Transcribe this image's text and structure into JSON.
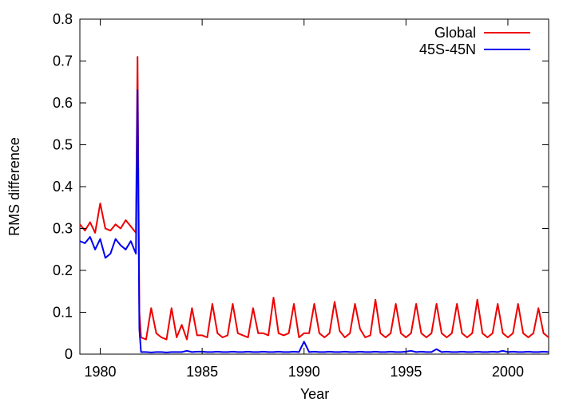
{
  "chart_data": {
    "type": "line",
    "title": "",
    "xlabel": "Year",
    "ylabel": "RMS difference",
    "xlim": [
      1979,
      2002
    ],
    "ylim": [
      0,
      0.8
    ],
    "x_ticks": [
      1980,
      1985,
      1990,
      1995,
      2000
    ],
    "y_ticks": [
      0,
      0.1,
      0.2,
      0.3,
      0.4,
      0.5,
      0.6,
      0.7,
      0.8
    ],
    "y_tick_labels": [
      "0",
      "0.1",
      "0.2",
      "0.3",
      "0.4",
      "0.5",
      "0.6",
      "0.7",
      "0.8"
    ],
    "grid": false,
    "legend_position": "top-right",
    "series": [
      {
        "name": "Global",
        "color": "#ee0000",
        "x": [
          1979.0,
          1979.25,
          1979.5,
          1979.75,
          1980.0,
          1980.25,
          1980.5,
          1980.75,
          1981.0,
          1981.25,
          1981.5,
          1981.75,
          1981.83,
          1981.92,
          1982.0,
          1982.25,
          1982.5,
          1982.75,
          1983.0,
          1983.25,
          1983.5,
          1983.75,
          1984.0,
          1984.25,
          1984.5,
          1984.75,
          1985.0,
          1985.25,
          1985.5,
          1985.75,
          1986.0,
          1986.25,
          1986.5,
          1986.75,
          1987.0,
          1987.25,
          1987.5,
          1987.75,
          1988.0,
          1988.25,
          1988.5,
          1988.75,
          1989.0,
          1989.25,
          1989.5,
          1989.75,
          1990.0,
          1990.25,
          1990.5,
          1990.75,
          1991.0,
          1991.25,
          1991.5,
          1991.75,
          1992.0,
          1992.25,
          1992.5,
          1992.75,
          1993.0,
          1993.25,
          1993.5,
          1993.75,
          1994.0,
          1994.25,
          1994.5,
          1994.75,
          1995.0,
          1995.25,
          1995.5,
          1995.75,
          1996.0,
          1996.25,
          1996.5,
          1996.75,
          1997.0,
          1997.25,
          1997.5,
          1997.75,
          1998.0,
          1998.25,
          1998.5,
          1998.75,
          1999.0,
          1999.25,
          1999.5,
          1999.75,
          2000.0,
          2000.25,
          2000.5,
          2000.75,
          2001.0,
          2001.25,
          2001.5,
          2001.75,
          2002.0
        ],
        "values": [
          0.31,
          0.295,
          0.315,
          0.29,
          0.36,
          0.3,
          0.295,
          0.31,
          0.3,
          0.32,
          0.305,
          0.29,
          0.71,
          0.1,
          0.04,
          0.035,
          0.11,
          0.05,
          0.04,
          0.035,
          0.11,
          0.04,
          0.07,
          0.035,
          0.11,
          0.045,
          0.045,
          0.04,
          0.12,
          0.05,
          0.04,
          0.045,
          0.12,
          0.05,
          0.045,
          0.04,
          0.11,
          0.05,
          0.05,
          0.045,
          0.135,
          0.05,
          0.045,
          0.05,
          0.12,
          0.04,
          0.05,
          0.05,
          0.12,
          0.05,
          0.04,
          0.05,
          0.125,
          0.055,
          0.04,
          0.05,
          0.12,
          0.06,
          0.04,
          0.045,
          0.13,
          0.05,
          0.04,
          0.05,
          0.12,
          0.05,
          0.04,
          0.05,
          0.12,
          0.05,
          0.04,
          0.05,
          0.12,
          0.05,
          0.04,
          0.05,
          0.12,
          0.05,
          0.04,
          0.05,
          0.13,
          0.05,
          0.04,
          0.05,
          0.12,
          0.05,
          0.04,
          0.05,
          0.12,
          0.05,
          0.04,
          0.05,
          0.11,
          0.05,
          0.04
        ]
      },
      {
        "name": "45S-45N",
        "color": "#0000ee",
        "x": [
          1979.0,
          1979.25,
          1979.5,
          1979.75,
          1980.0,
          1980.25,
          1980.5,
          1980.75,
          1981.0,
          1981.25,
          1981.5,
          1981.75,
          1981.83,
          1981.92,
          1982.0,
          1982.25,
          1982.5,
          1982.75,
          1983.0,
          1983.25,
          1983.5,
          1983.75,
          1984.0,
          1984.25,
          1984.5,
          1984.75,
          1985.0,
          1985.25,
          1985.5,
          1985.75,
          1986.0,
          1986.25,
          1986.5,
          1986.75,
          1987.0,
          1987.25,
          1987.5,
          1987.75,
          1988.0,
          1988.25,
          1988.5,
          1988.75,
          1989.0,
          1989.25,
          1989.5,
          1989.75,
          1990.0,
          1990.25,
          1990.5,
          1990.75,
          1991.0,
          1991.25,
          1991.5,
          1991.75,
          1992.0,
          1992.25,
          1992.5,
          1992.75,
          1993.0,
          1993.25,
          1993.5,
          1993.75,
          1994.0,
          1994.25,
          1994.5,
          1994.75,
          1995.0,
          1995.25,
          1995.5,
          1995.75,
          1996.0,
          1996.25,
          1996.5,
          1996.75,
          1997.0,
          1997.25,
          1997.5,
          1997.75,
          1998.0,
          1998.25,
          1998.5,
          1998.75,
          1999.0,
          1999.25,
          1999.5,
          1999.75,
          2000.0,
          2000.25,
          2000.5,
          2000.75,
          2001.0,
          2001.25,
          2001.5,
          2001.75,
          2002.0
        ],
        "values": [
          0.27,
          0.265,
          0.28,
          0.25,
          0.275,
          0.23,
          0.24,
          0.275,
          0.26,
          0.25,
          0.27,
          0.24,
          0.63,
          0.06,
          0.005,
          0.005,
          0.004,
          0.005,
          0.005,
          0.004,
          0.005,
          0.005,
          0.005,
          0.008,
          0.005,
          0.006,
          0.006,
          0.005,
          0.005,
          0.006,
          0.005,
          0.005,
          0.006,
          0.005,
          0.005,
          0.006,
          0.005,
          0.005,
          0.006,
          0.005,
          0.005,
          0.006,
          0.005,
          0.005,
          0.006,
          0.005,
          0.03,
          0.005,
          0.006,
          0.005,
          0.005,
          0.006,
          0.005,
          0.005,
          0.006,
          0.005,
          0.005,
          0.006,
          0.005,
          0.005,
          0.006,
          0.005,
          0.005,
          0.006,
          0.005,
          0.005,
          0.006,
          0.008,
          0.005,
          0.006,
          0.005,
          0.005,
          0.012,
          0.005,
          0.006,
          0.005,
          0.005,
          0.006,
          0.005,
          0.005,
          0.006,
          0.005,
          0.005,
          0.006,
          0.005,
          0.008,
          0.005,
          0.006,
          0.005,
          0.005,
          0.006,
          0.005,
          0.005,
          0.006,
          0.005
        ]
      }
    ]
  }
}
